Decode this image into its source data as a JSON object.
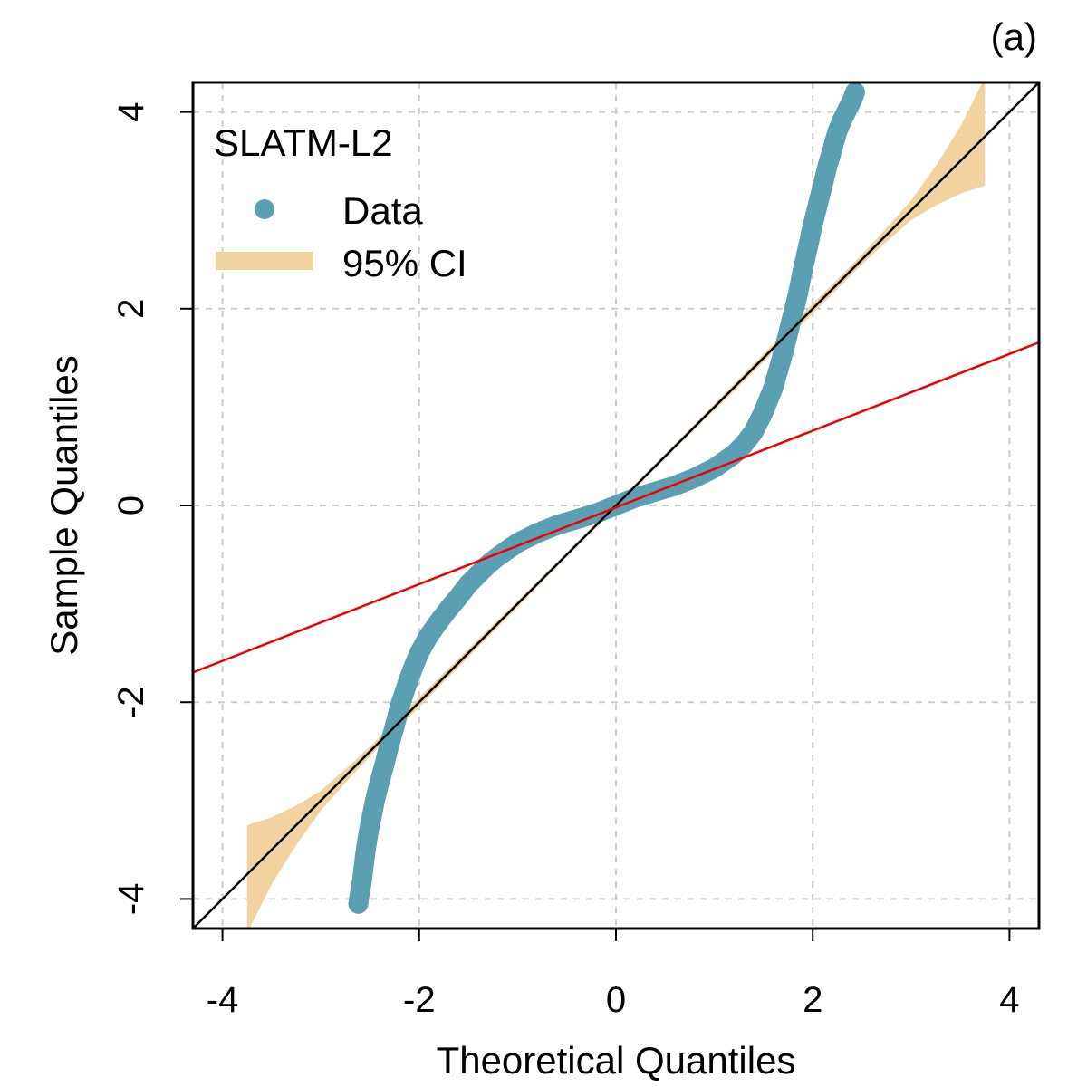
{
  "chart_data": {
    "type": "scatter",
    "panel_label": "(a)",
    "xlabel": "Theoretical Quantiles",
    "ylabel": "Sample Quantiles",
    "xlim": [
      -4.3,
      4.3
    ],
    "ylim": [
      -4.3,
      4.3
    ],
    "xticks": [
      -4,
      -2,
      0,
      2,
      4
    ],
    "yticks": [
      -4,
      -2,
      0,
      2,
      4
    ],
    "xtick_labels": [
      "-4",
      "-2",
      "0",
      "2",
      "4"
    ],
    "ytick_labels": [
      "-4",
      "-2",
      "0",
      "2",
      "4"
    ],
    "grid": true,
    "legend": {
      "title": "SLATM-L2",
      "position": "top-left",
      "entries": [
        {
          "label": "Data",
          "kind": "point",
          "color": "#5a9fb2"
        },
        {
          "label": "95% CI",
          "kind": "band",
          "color": "#f2d3a0"
        }
      ]
    },
    "series": [
      {
        "name": "Data",
        "color": "#5a9fb2",
        "x": [
          -2.62,
          -2.58,
          -2.55,
          -2.52,
          -2.48,
          -2.45,
          -2.4,
          -2.35,
          -2.3,
          -2.25,
          -2.2,
          -2.15,
          -2.1,
          -2.05,
          -2.0,
          -1.9,
          -1.8,
          -1.7,
          -1.6,
          -1.5,
          -1.4,
          -1.3,
          -1.2,
          -1.1,
          -1.0,
          -0.9,
          -0.8,
          -0.7,
          -0.6,
          -0.5,
          -0.4,
          -0.3,
          -0.2,
          -0.1,
          0.0,
          0.1,
          0.2,
          0.3,
          0.4,
          0.5,
          0.6,
          0.7,
          0.8,
          0.9,
          1.0,
          1.1,
          1.2,
          1.3,
          1.4,
          1.5,
          1.6,
          1.7,
          1.8,
          1.85,
          1.9,
          1.95,
          2.0,
          2.05,
          2.1,
          2.15,
          2.2,
          2.25,
          2.3,
          2.35,
          2.4,
          2.43
        ],
        "y": [
          -4.05,
          -3.8,
          -3.55,
          -3.35,
          -3.15,
          -3.0,
          -2.8,
          -2.62,
          -2.42,
          -2.25,
          -2.05,
          -1.9,
          -1.75,
          -1.62,
          -1.5,
          -1.32,
          -1.18,
          -1.05,
          -0.93,
          -0.8,
          -0.7,
          -0.6,
          -0.52,
          -0.45,
          -0.38,
          -0.33,
          -0.28,
          -0.24,
          -0.2,
          -0.17,
          -0.14,
          -0.11,
          -0.08,
          -0.04,
          0.0,
          0.04,
          0.08,
          0.11,
          0.14,
          0.17,
          0.2,
          0.24,
          0.28,
          0.33,
          0.38,
          0.45,
          0.52,
          0.62,
          0.75,
          0.95,
          1.2,
          1.55,
          1.95,
          2.15,
          2.4,
          2.62,
          2.85,
          3.05,
          3.25,
          3.45,
          3.62,
          3.8,
          3.92,
          4.02,
          4.12,
          4.2
        ]
      }
    ],
    "confidence_band": {
      "name": "95% CI",
      "color": "#f2d3a0",
      "x": [
        -3.75,
        -3.5,
        -3.25,
        -3.0,
        -2.75,
        -2.5,
        -2.25,
        -2.0,
        -1.5,
        -1.0,
        -0.5,
        0.0,
        0.5,
        1.0,
        1.5,
        2.0,
        2.25,
        2.5,
        2.75,
        3.0,
        3.25,
        3.5,
        3.75
      ],
      "lower": [
        -4.35,
        -3.85,
        -3.45,
        -3.1,
        -2.82,
        -2.55,
        -2.3,
        -2.05,
        -1.54,
        -1.03,
        -0.52,
        -0.02,
        0.48,
        0.97,
        1.46,
        1.95,
        2.2,
        2.45,
        2.68,
        2.9,
        3.05,
        3.17,
        3.25
      ],
      "upper": [
        -3.25,
        -3.17,
        -3.05,
        -2.9,
        -2.68,
        -2.45,
        -2.2,
        -1.95,
        -1.46,
        -0.97,
        -0.48,
        0.02,
        0.52,
        1.03,
        1.54,
        2.05,
        2.3,
        2.55,
        2.82,
        3.1,
        3.45,
        3.85,
        4.35
      ]
    },
    "reference_lines": [
      {
        "name": "identity-line",
        "color": "#000000",
        "intercept": 0.0,
        "slope": 1.0
      },
      {
        "name": "fit-line",
        "color": "#ee0000",
        "intercept": -0.02,
        "slope": 0.39
      }
    ]
  }
}
